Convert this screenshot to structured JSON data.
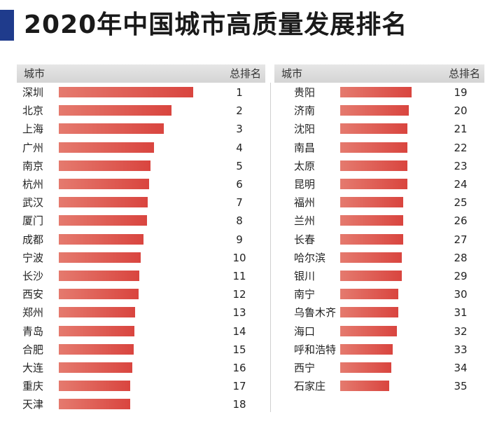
{
  "title": "2020年中国城市高质量发展排名",
  "headers": {
    "city": "城市",
    "rank": "总排名"
  },
  "colors": {
    "title_bar": "#1f3b8c",
    "bar_start": "#e57a6e",
    "bar_end": "#d9453f",
    "header_bg": "#dcdcdc"
  },
  "chart_data": {
    "type": "bar",
    "title": "2020年中国城市高质量发展排名",
    "left": [
      {
        "city": "深圳",
        "rank": 1,
        "bar": 1.0
      },
      {
        "city": "北京",
        "rank": 2,
        "bar": 0.84
      },
      {
        "city": "上海",
        "rank": 3,
        "bar": 0.78
      },
      {
        "city": "广州",
        "rank": 4,
        "bar": 0.71
      },
      {
        "city": "南京",
        "rank": 5,
        "bar": 0.68
      },
      {
        "city": "杭州",
        "rank": 6,
        "bar": 0.67
      },
      {
        "city": "武汉",
        "rank": 7,
        "bar": 0.66
      },
      {
        "city": "厦门",
        "rank": 8,
        "bar": 0.655
      },
      {
        "city": "成都",
        "rank": 9,
        "bar": 0.63
      },
      {
        "city": "宁波",
        "rank": 10,
        "bar": 0.61
      },
      {
        "city": "长沙",
        "rank": 11,
        "bar": 0.6
      },
      {
        "city": "西安",
        "rank": 12,
        "bar": 0.595
      },
      {
        "city": "郑州",
        "rank": 13,
        "bar": 0.57
      },
      {
        "city": "青岛",
        "rank": 14,
        "bar": 0.565
      },
      {
        "city": "合肥",
        "rank": 15,
        "bar": 0.555
      },
      {
        "city": "大连",
        "rank": 16,
        "bar": 0.545
      },
      {
        "city": "重庆",
        "rank": 17,
        "bar": 0.53
      },
      {
        "city": "天津",
        "rank": 18,
        "bar": 0.53
      }
    ],
    "right": [
      {
        "city": "贵阳",
        "rank": 19,
        "bar": 0.53
      },
      {
        "city": "济南",
        "rank": 20,
        "bar": 0.51
      },
      {
        "city": "沈阳",
        "rank": 21,
        "bar": 0.5
      },
      {
        "city": "南昌",
        "rank": 22,
        "bar": 0.5
      },
      {
        "city": "太原",
        "rank": 23,
        "bar": 0.5
      },
      {
        "city": "昆明",
        "rank": 24,
        "bar": 0.5
      },
      {
        "city": "福州",
        "rank": 25,
        "bar": 0.47
      },
      {
        "city": "兰州",
        "rank": 26,
        "bar": 0.47
      },
      {
        "city": "长春",
        "rank": 27,
        "bar": 0.47
      },
      {
        "city": "哈尔滨",
        "rank": 28,
        "bar": 0.46
      },
      {
        "city": "银川",
        "rank": 29,
        "bar": 0.46
      },
      {
        "city": "南宁",
        "rank": 30,
        "bar": 0.43
      },
      {
        "city": "乌鲁木齐",
        "rank": 31,
        "bar": 0.43
      },
      {
        "city": "海口",
        "rank": 32,
        "bar": 0.42
      },
      {
        "city": "呼和浩特",
        "rank": 33,
        "bar": 0.39
      },
      {
        "city": "西宁",
        "rank": 34,
        "bar": 0.38
      },
      {
        "city": "石家庄",
        "rank": 35,
        "bar": 0.365
      }
    ]
  }
}
